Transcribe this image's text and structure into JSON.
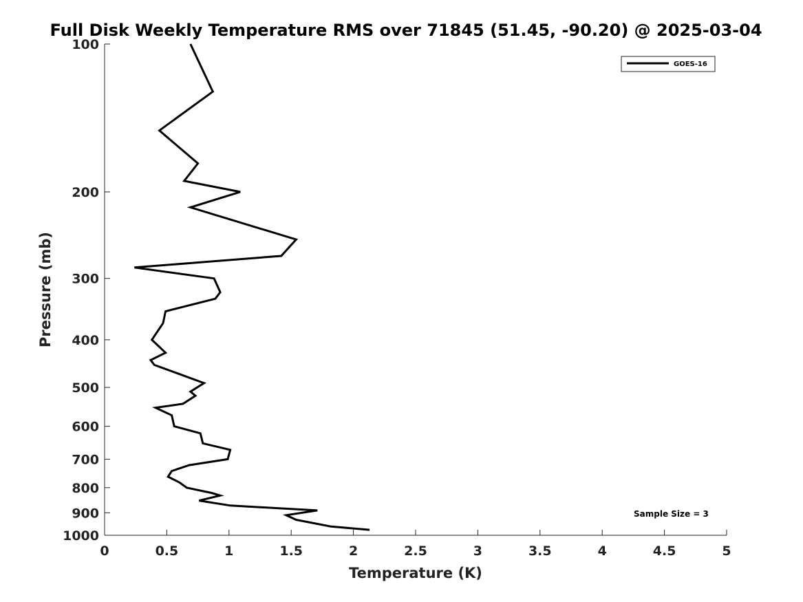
{
  "chart_data": {
    "type": "line",
    "title": "Full Disk Weekly Temperature RMS over 71845 (51.45, -90.20) @ 2025-03-04",
    "xlabel": "Temperature (K)",
    "ylabel": "Pressure (mb)",
    "xlim": [
      0,
      5
    ],
    "ylim": [
      100,
      1000
    ],
    "yscale": "log",
    "y_reversed": true,
    "xticks": [
      0,
      0.5,
      1,
      1.5,
      2,
      2.5,
      3,
      3.5,
      4,
      4.5,
      5
    ],
    "xtick_labels": [
      "0",
      "0.5",
      "1",
      "1.5",
      "2",
      "2.5",
      "3",
      "3.5",
      "4",
      "4.5",
      "5"
    ],
    "yticks": [
      100,
      200,
      300,
      400,
      500,
      600,
      700,
      800,
      900,
      1000
    ],
    "ytick_labels": [
      "100",
      "200",
      "300",
      "400",
      "500",
      "600",
      "700",
      "800",
      "900",
      "1000"
    ],
    "grid": false,
    "legend_position": "top-right",
    "series": [
      {
        "name": "GOES-16",
        "color": "#000000",
        "points": [
          [
            0.69,
            100
          ],
          [
            0.87,
            125
          ],
          [
            0.44,
            150
          ],
          [
            0.75,
            175
          ],
          [
            0.64,
            190
          ],
          [
            1.09,
            200
          ],
          [
            0.69,
            215
          ],
          [
            1.54,
            250
          ],
          [
            1.42,
            270
          ],
          [
            0.24,
            285
          ],
          [
            0.88,
            300
          ],
          [
            0.93,
            320
          ],
          [
            0.89,
            330
          ],
          [
            0.49,
            350
          ],
          [
            0.47,
            370
          ],
          [
            0.38,
            400
          ],
          [
            0.49,
            425
          ],
          [
            0.37,
            440
          ],
          [
            0.4,
            450
          ],
          [
            0.8,
            490
          ],
          [
            0.69,
            510
          ],
          [
            0.73,
            520
          ],
          [
            0.63,
            540
          ],
          [
            0.41,
            550
          ],
          [
            0.54,
            570
          ],
          [
            0.56,
            600
          ],
          [
            0.77,
            620
          ],
          [
            0.79,
            650
          ],
          [
            1.01,
            670
          ],
          [
            0.99,
            700
          ],
          [
            0.68,
            720
          ],
          [
            0.54,
            740
          ],
          [
            0.51,
            760
          ],
          [
            0.6,
            780
          ],
          [
            0.66,
            800
          ],
          [
            0.86,
            820
          ],
          [
            0.93,
            830
          ],
          [
            0.76,
            850
          ],
          [
            1.01,
            870
          ],
          [
            1.71,
            890
          ],
          [
            1.46,
            910
          ],
          [
            1.54,
            930
          ],
          [
            1.82,
            960
          ],
          [
            2.13,
            975
          ]
        ]
      }
    ],
    "annotations": [
      "Sample Size = 3"
    ]
  }
}
